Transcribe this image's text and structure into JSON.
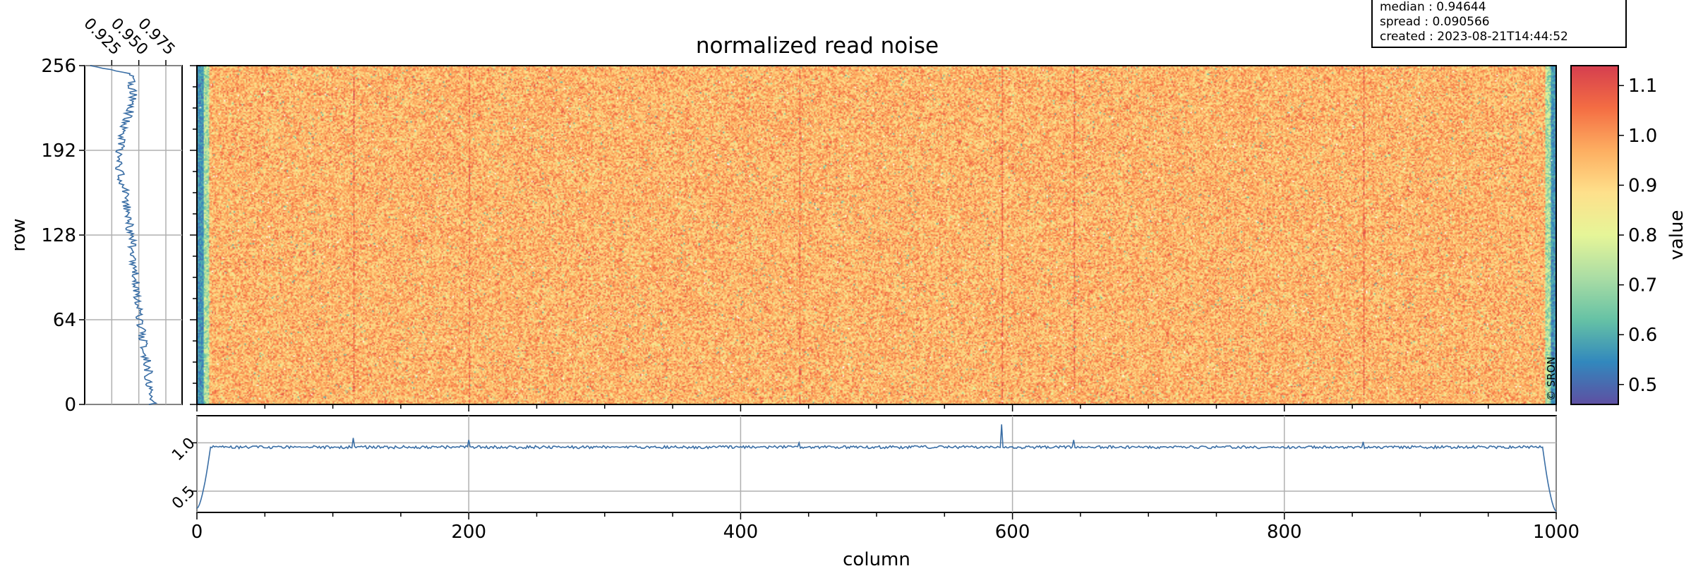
{
  "chart_data": {
    "type": "heatmap",
    "title": "normalized read noise",
    "xlabel": "column",
    "ylabel": "row",
    "colorbar_label": "value",
    "copyright": "© SRON",
    "columns": 1000,
    "rows": 256,
    "xlim": [
      0,
      1000
    ],
    "ylim": [
      0,
      256
    ],
    "clim": [
      0.46,
      1.14
    ],
    "colormap": "rainbow-spectral",
    "colormap_stops": [
      "#5e4fa2",
      "#3288bd",
      "#66c2a5",
      "#abdda4",
      "#e6f598",
      "#fee08b",
      "#fdae61",
      "#f46d43",
      "#d53e4f"
    ],
    "main_x_ticks": [
      "0",
      "200",
      "400",
      "600",
      "800",
      "1000"
    ],
    "main_x_tick_values": [
      0,
      200,
      400,
      600,
      800,
      1000
    ],
    "row_ticks": [
      "0",
      "64",
      "128",
      "192",
      "256"
    ],
    "row_tick_values": [
      0,
      64,
      128,
      192,
      256
    ],
    "colorbar_ticks": [
      "0.5",
      "0.6",
      "0.7",
      "0.8",
      "0.9",
      "1.0",
      "1.1"
    ],
    "colorbar_tick_values": [
      0.5,
      0.6,
      0.7,
      0.8,
      0.9,
      1.0,
      1.1
    ],
    "column_hotspots": [
      115,
      200,
      443,
      592,
      645,
      858
    ],
    "stats": {
      "median_line": "median : 0.94644",
      "spread_line": "spread : 0.090566",
      "created_line": "created : 2023-08-21T14:44:52"
    },
    "column_profile": {
      "ylim": [
        0.28,
        1.28
      ],
      "y_ticks": [
        "0.5",
        "1.0"
      ],
      "y_tick_values": [
        0.5,
        1.0
      ],
      "baseline": 0.955,
      "edge_start_value": 0.32,
      "edge_end_value": 0.29,
      "peaks": [
        {
          "column": 115,
          "value": 1.05
        },
        {
          "column": 200,
          "value": 1.03
        },
        {
          "column": 443,
          "value": 1.0
        },
        {
          "column": 592,
          "value": 1.19
        },
        {
          "column": 645,
          "value": 1.03
        },
        {
          "column": 858,
          "value": 1.01
        }
      ]
    },
    "row_profile": {
      "xlim": [
        0.9,
        0.99
      ],
      "x_ticks": [
        "0.925",
        "0.950",
        "0.975"
      ],
      "x_tick_values": [
        0.925,
        0.95,
        0.975
      ],
      "trend": [
        {
          "row": 0,
          "value": 0.962
        },
        {
          "row": 30,
          "value": 0.958
        },
        {
          "row": 64,
          "value": 0.951
        },
        {
          "row": 100,
          "value": 0.946
        },
        {
          "row": 128,
          "value": 0.943
        },
        {
          "row": 160,
          "value": 0.937
        },
        {
          "row": 185,
          "value": 0.93
        },
        {
          "row": 210,
          "value": 0.937
        },
        {
          "row": 230,
          "value": 0.945
        },
        {
          "row": 250,
          "value": 0.943
        },
        {
          "row": 256,
          "value": 0.905
        }
      ]
    }
  }
}
